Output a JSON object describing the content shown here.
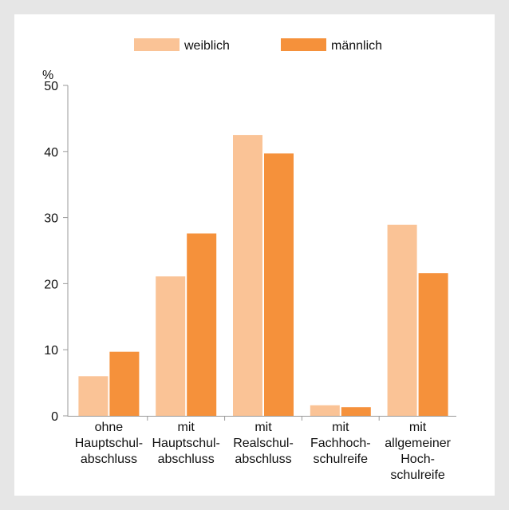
{
  "chart_data": {
    "type": "bar",
    "title": "",
    "xlabel": "",
    "ylabel": "%",
    "ylim": [
      0,
      50
    ],
    "yticks": [
      0,
      10,
      20,
      30,
      40,
      50
    ],
    "grid": false,
    "legend_position": "top-center",
    "categories": [
      [
        "ohne",
        "Hauptschul-",
        "abschluss"
      ],
      [
        "mit",
        "Hauptschul-",
        "abschluss"
      ],
      [
        "mit",
        "Realschul-",
        "abschluss"
      ],
      [
        "mit",
        "Fachhoch-",
        "schulreife"
      ],
      [
        "mit",
        "allgemeiner",
        "Hoch-",
        "schulreife"
      ]
    ],
    "series": [
      {
        "name": "weiblich",
        "color": "#fac396",
        "values": [
          6.0,
          21.1,
          42.5,
          1.6,
          28.9
        ]
      },
      {
        "name": "männlich",
        "color": "#f5913b",
        "values": [
          9.7,
          27.6,
          39.7,
          1.3,
          21.6
        ]
      }
    ]
  }
}
